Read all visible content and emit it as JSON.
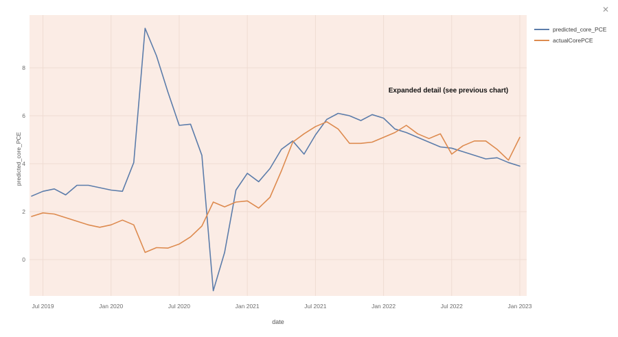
{
  "window": {
    "close_icon": "✕"
  },
  "annotation": {
    "text": "Expanded detail (see previous chart)"
  },
  "legend": {
    "items": [
      {
        "label": "predicted_core_PCE",
        "color": "#5b7caa"
      },
      {
        "label": "actualCorePCE",
        "color": "#dd8a4e"
      }
    ]
  },
  "chart_data": {
    "type": "line",
    "title": "",
    "xlabel": "date",
    "ylabel": "predicted_core_PCE",
    "grid": true,
    "legend_position": "top-right-outside",
    "plot_bg": "#fbece5",
    "grid_color": "#efdcd3",
    "ylim": [
      -1.5,
      10.2
    ],
    "y_ticks": [
      0,
      2,
      4,
      6,
      8
    ],
    "x_tick_labels": [
      "Jul 2019",
      "Jan 2020",
      "Jul 2020",
      "Jan 2021",
      "Jul 2021",
      "Jan 2022",
      "Jul 2022",
      "Jan 2023"
    ],
    "x_tick_values": [
      "2019-07",
      "2020-01",
      "2020-07",
      "2021-01",
      "2021-07",
      "2022-01",
      "2022-07",
      "2023-01"
    ],
    "x": [
      "2019-06",
      "2019-07",
      "2019-08",
      "2019-09",
      "2019-10",
      "2019-11",
      "2019-12",
      "2020-01",
      "2020-02",
      "2020-03",
      "2020-04",
      "2020-05",
      "2020-06",
      "2020-07",
      "2020-08",
      "2020-09",
      "2020-10",
      "2020-11",
      "2020-12",
      "2021-01",
      "2021-02",
      "2021-03",
      "2021-04",
      "2021-05",
      "2021-06",
      "2021-07",
      "2021-08",
      "2021-09",
      "2021-10",
      "2021-11",
      "2021-12",
      "2022-01",
      "2022-02",
      "2022-03",
      "2022-04",
      "2022-05",
      "2022-06",
      "2022-07",
      "2022-08",
      "2022-09",
      "2022-10",
      "2022-11",
      "2022-12",
      "2023-01"
    ],
    "series": [
      {
        "name": "predicted_core_PCE",
        "color": "#5b7caa",
        "values": [
          2.65,
          2.85,
          2.95,
          2.7,
          3.1,
          3.1,
          3.0,
          2.9,
          2.85,
          4.05,
          9.65,
          8.5,
          7.0,
          5.6,
          5.65,
          4.35,
          -1.3,
          0.3,
          2.9,
          3.6,
          3.25,
          3.8,
          4.6,
          4.95,
          4.4,
          5.2,
          5.85,
          6.1,
          6.0,
          5.8,
          6.05,
          5.9,
          5.45,
          5.3,
          5.1,
          4.9,
          4.7,
          4.65,
          4.5,
          4.35,
          4.2,
          4.25,
          4.05,
          3.9
        ]
      },
      {
        "name": "actualCorePCE",
        "color": "#dd8a4e",
        "values": [
          1.8,
          1.95,
          1.9,
          1.75,
          1.6,
          1.45,
          1.35,
          1.45,
          1.65,
          1.45,
          0.3,
          0.5,
          0.48,
          0.65,
          0.95,
          1.4,
          2.4,
          2.2,
          2.4,
          2.45,
          2.15,
          2.6,
          3.7,
          4.9,
          5.25,
          5.55,
          5.75,
          5.45,
          4.85,
          4.85,
          4.9,
          5.1,
          5.3,
          5.6,
          5.25,
          5.05,
          5.25,
          4.4,
          4.75,
          4.95,
          4.95,
          4.6,
          4.15,
          5.1
        ]
      }
    ]
  }
}
